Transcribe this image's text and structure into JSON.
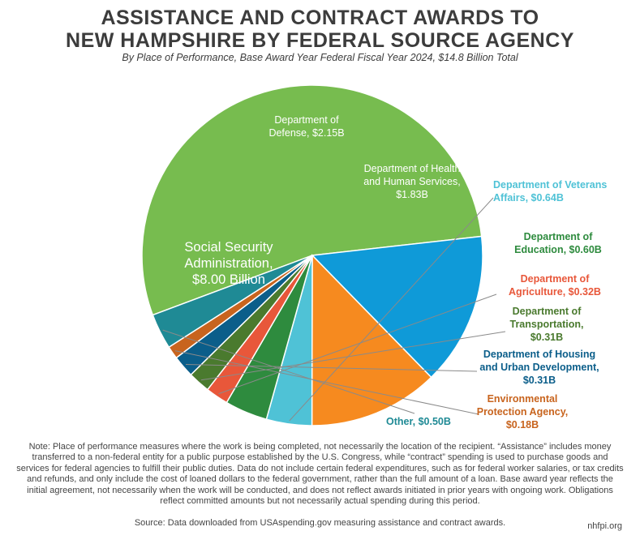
{
  "chart_data": {
    "type": "pie",
    "title_lines": [
      "ASSISTANCE AND CONTRACT AWARDS TO",
      "NEW HAMPSHIRE BY FEDERAL SOURCE AGENCY"
    ],
    "subtitle": "By Place of Performance, Base Award Year Federal Fiscal Year 2024, $14.8 Billion Total",
    "slices": [
      {
        "key": "ssa",
        "value": 8.0,
        "color": "#77bc4f",
        "label_color": "#ffffff",
        "label_lines": [
          "Social Security",
          "Administration,",
          "$8.00 Billion"
        ]
      },
      {
        "key": "defense",
        "value": 2.15,
        "color": "#0f9ad8",
        "label_color": "#ffffff",
        "label_lines": [
          "Department of",
          "Defense, $2.15B"
        ]
      },
      {
        "key": "hhs",
        "value": 1.83,
        "color": "#f68a1f",
        "label_color": "#ffffff",
        "label_lines": [
          "Department of Health",
          "and Human Services,",
          "$1.83B"
        ]
      },
      {
        "key": "va",
        "value": 0.64,
        "color": "#4fc2d6",
        "label_color": "#4fc2d6",
        "label_lines": [
          "Department of Veterans",
          "Affairs, $0.64B"
        ]
      },
      {
        "key": "education",
        "value": 0.6,
        "color": "#2e8b3e",
        "label_color": "#2e8b3e",
        "label_lines": [
          "Department of",
          "Education, $0.60B"
        ]
      },
      {
        "key": "agriculture",
        "value": 0.32,
        "color": "#e8573a",
        "label_color": "#e8573a",
        "label_lines": [
          "Department of",
          "Agriculture, $0.32B"
        ]
      },
      {
        "key": "transportation",
        "value": 0.31,
        "color": "#4a7a2e",
        "label_color": "#4a7a2e",
        "label_lines": [
          "Department of",
          "Transportation,",
          "$0.31B"
        ]
      },
      {
        "key": "hud",
        "value": 0.31,
        "color": "#0b5e8a",
        "label_color": "#0b5e8a",
        "label_lines": [
          "Department of Housing",
          "and Urban Development,",
          "$0.31B"
        ]
      },
      {
        "key": "epa",
        "value": 0.18,
        "color": "#c8641e",
        "label_color": "#c8641e",
        "label_lines": [
          "Environmental",
          "Protection Agency,",
          "$0.18B"
        ]
      },
      {
        "key": "other",
        "value": 0.5,
        "color": "#1f8a95",
        "label_color": "#1f8a95",
        "label_lines": [
          "Other, $0.50B"
        ]
      }
    ]
  },
  "note": "Note: Place of performance measures where the work is being completed, not necessarily the location of the recipient. “Assistance” includes money transferred to a non-federal entity for a public purpose established by the U.S. Congress, while “contract” spending is used to purchase goods and services for federal agencies to fulfill their public duties. Data do not include certain federal expenditures, such as for federal worker salaries, or tax credits and refunds, and only include the cost of loaned dollars to the federal government, rather than the full amount of a loan. Base award year reflects the initial agreement, not necessarily when the work will be conducted, and does not reflect awards initiated in prior years with ongoing work.  Obligations reflect committed amounts but not necessarily actual spending during this period.",
  "source": "Source: Data downloaded from USAspending.gov measuring assistance and contract awards.",
  "site": "nhfpi.org"
}
